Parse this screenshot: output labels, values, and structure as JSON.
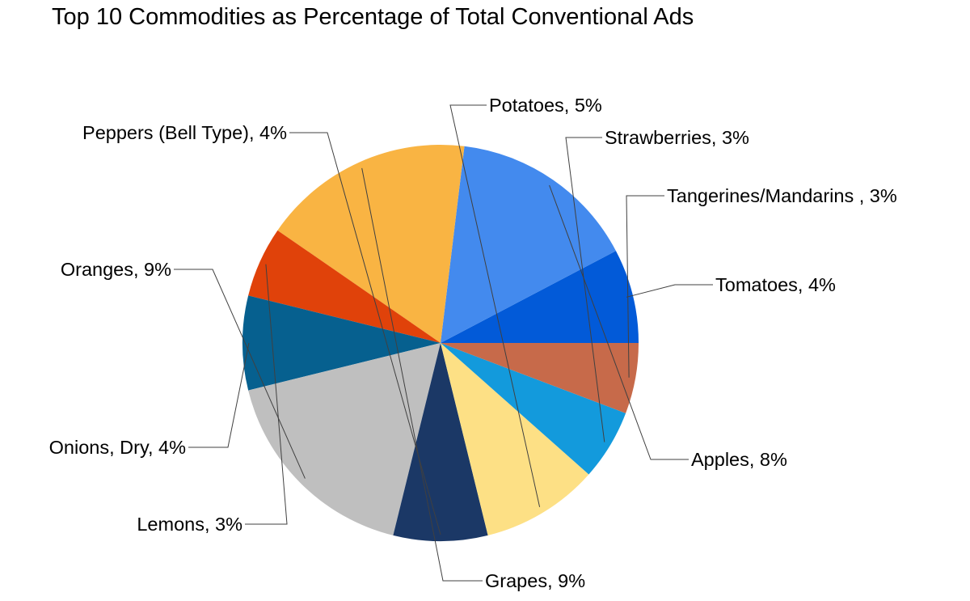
{
  "chart_data": {
    "type": "pie",
    "title": "Top 10 Commodities as Percentage of Total Conventional Ads",
    "legend": "none",
    "slices": [
      {
        "label": "Tomatoes",
        "value": 4,
        "display": "Tomatoes, 4%",
        "color": "#025AD8"
      },
      {
        "label": "Apples",
        "value": 8,
        "display": "Apples, 8%",
        "color": "#438AEE"
      },
      {
        "label": "Grapes",
        "value": 9,
        "display": "Grapes, 9%",
        "color": "#F9B443"
      },
      {
        "label": "Lemons",
        "value": 3,
        "display": "Lemons, 3%",
        "color": "#E0420A"
      },
      {
        "label": "Onions, Dry",
        "value": 4,
        "display": "Onions, Dry, 4%",
        "color": "#06608F"
      },
      {
        "label": "Oranges",
        "value": 9,
        "display": "Oranges, 9%",
        "color": "#BFBFBF"
      },
      {
        "label": "Peppers (Bell Type)",
        "value": 4,
        "display": "Peppers (Bell Type), 4%",
        "color": "#1B3866"
      },
      {
        "label": "Potatoes",
        "value": 5,
        "display": "Potatoes, 5%",
        "color": "#FDE085"
      },
      {
        "label": "Strawberries",
        "value": 3,
        "display": "Strawberries, 3%",
        "color": "#139ADC"
      },
      {
        "label": "Tangerines/Mandarins ",
        "value": 3,
        "display": "Tangerines/Mandarins , 3%",
        "color": "#C76A4A"
      }
    ]
  }
}
